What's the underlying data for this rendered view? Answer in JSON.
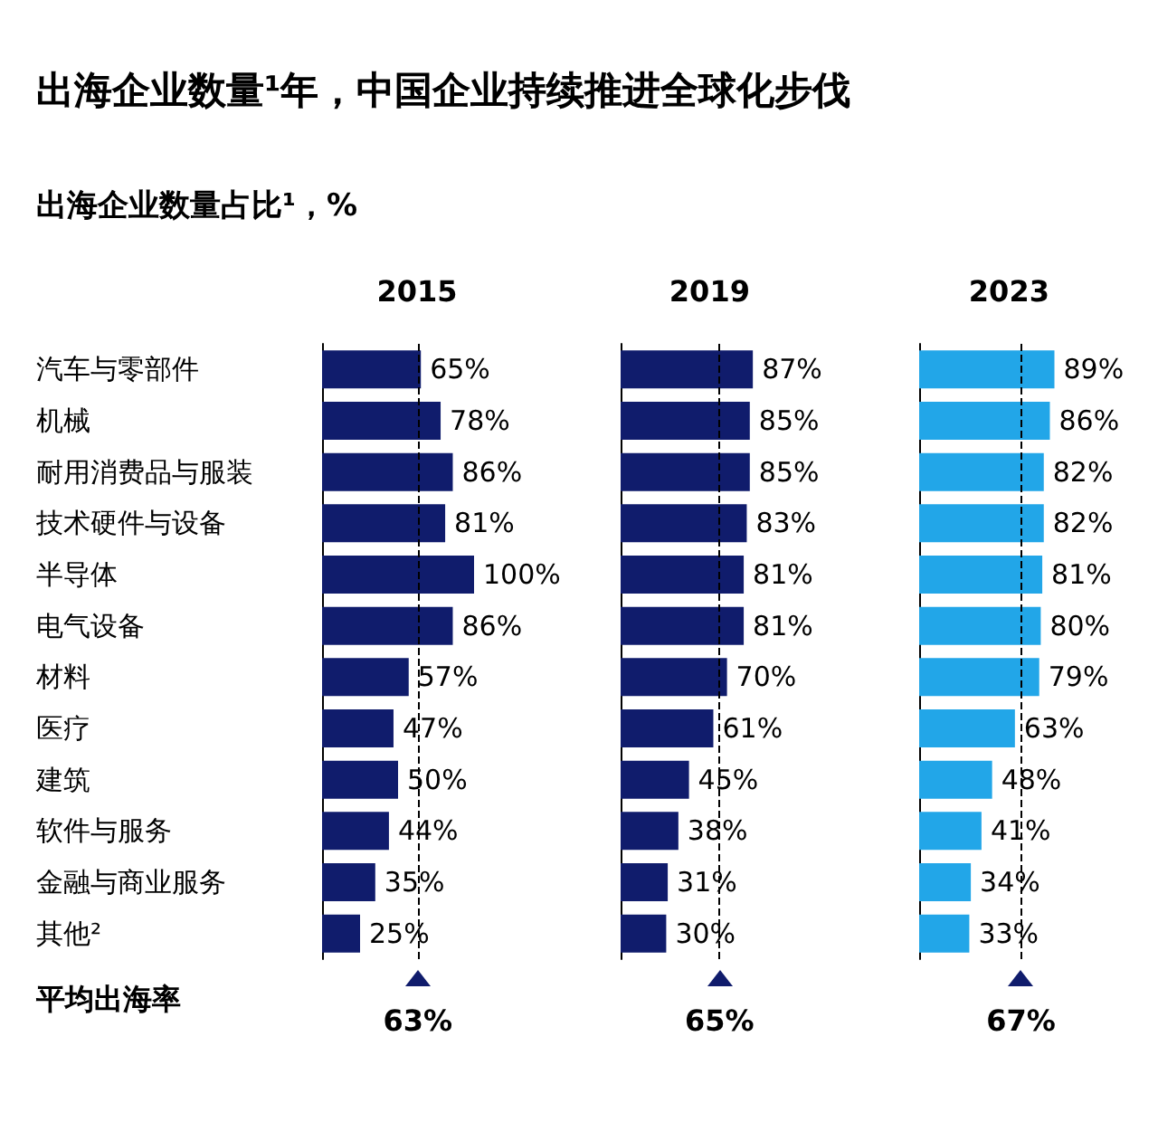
{
  "chart_data": [
    {
      "type": "other",
      "title": "出海企业数量¹年，中国企业持续推进全球化步伐",
      "subtitle": "出海企业数量占比¹，%"
    },
    {
      "type": "bar",
      "orientation": "horizontal",
      "title": "2015",
      "categories": [
        "汽车与零部件",
        "机械",
        "耐用消费品与服装",
        "技术硬件与设备",
        "半导体",
        "电气设备",
        "材料",
        "医疗",
        "建筑",
        "软件与服务",
        "金融与商业服务",
        "其他²"
      ],
      "values": [
        65,
        78,
        86,
        81,
        100,
        86,
        57,
        47,
        50,
        44,
        35,
        25
      ],
      "value_labels": [
        "65%",
        "78%",
        "86%",
        "81%",
        "100%",
        "86%",
        "57%",
        "47%",
        "50%",
        "44%",
        "35%",
        "25%"
      ],
      "color": "#101c6c",
      "tick_labels": "y",
      "ref_lines": [
        {
          "axis": "x",
          "value": 63,
          "label": "63%",
          "line_style": "dashed"
        }
      ],
      "annotations": [
        "平均出海率"
      ]
    },
    {
      "type": "bar",
      "orientation": "horizontal",
      "title": "2019",
      "values": [
        87,
        85,
        85,
        83,
        81,
        81,
        70,
        61,
        45,
        38,
        31,
        30
      ],
      "value_labels": [
        "87%",
        "85%",
        "85%",
        "83%",
        "81%",
        "81%",
        "70%",
        "61%",
        "45%",
        "38%",
        "31%",
        "30%"
      ],
      "color": "#101c6c",
      "ref_lines": [
        {
          "axis": "x",
          "value": 65,
          "label": "65%",
          "line_style": "dashed"
        }
      ]
    },
    {
      "type": "bar",
      "orientation": "horizontal",
      "title": "2023",
      "values": [
        89,
        86,
        82,
        82,
        81,
        80,
        79,
        63,
        48,
        41,
        34,
        33
      ],
      "value_labels": [
        "89%",
        "86%",
        "82%",
        "82%",
        "81%",
        "80%",
        "79%",
        "63%",
        "48%",
        "41%",
        "34%",
        "33%"
      ],
      "color": "#22a6e8",
      "ref_lines": [
        {
          "axis": "x",
          "value": 67,
          "label": "67%",
          "line_style": "dashed"
        }
      ]
    }
  ]
}
